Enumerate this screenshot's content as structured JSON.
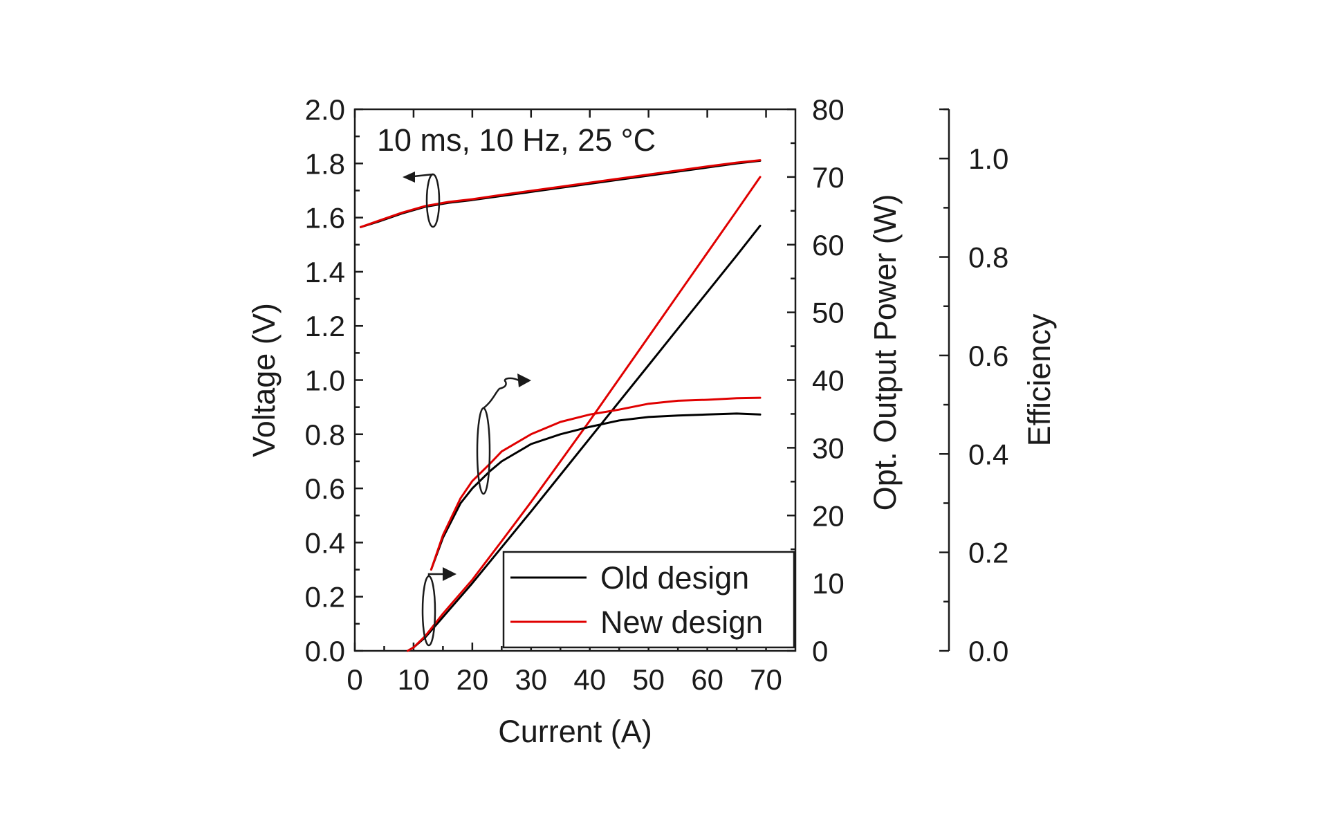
{
  "chart_data": {
    "type": "line",
    "annotation": "10 ms, 10 Hz, 25 °C",
    "x_axis": {
      "label": "Current (A)",
      "range": [
        0,
        75
      ],
      "ticks": [
        0,
        10,
        20,
        30,
        40,
        50,
        60,
        70
      ],
      "tick_labels": [
        "0",
        "10",
        "20",
        "30",
        "40",
        "50",
        "60",
        "70"
      ]
    },
    "y_axis_left": {
      "label": "Voltage (V)",
      "range": [
        0,
        2.0
      ],
      "ticks": [
        0,
        0.2,
        0.4,
        0.6,
        0.8,
        1.0,
        1.2,
        1.4,
        1.6,
        1.8,
        2.0
      ],
      "tick_labels": [
        "0.0",
        "0.2",
        "0.4",
        "0.6",
        "0.8",
        "1.0",
        "1.2",
        "1.4",
        "1.6",
        "1.8",
        "2.0"
      ]
    },
    "y_axis_right": {
      "label": "Opt. Output Power (W)",
      "range": [
        0,
        80
      ],
      "ticks": [
        0,
        10,
        20,
        30,
        40,
        50,
        60,
        70,
        80
      ],
      "tick_labels": [
        "0",
        "10",
        "20",
        "30",
        "40",
        "50",
        "60",
        "70",
        "80"
      ]
    },
    "y_axis_far_right": {
      "label": "Efficiency",
      "range": [
        0,
        1.1
      ],
      "ticks": [
        0,
        0.2,
        0.4,
        0.6,
        0.8,
        1.0
      ],
      "tick_labels": [
        "0.0",
        "0.2",
        "0.4",
        "0.6",
        "0.8",
        "1.0"
      ]
    },
    "legend": {
      "position": "bottom-right",
      "entries": [
        {
          "label": "Old design",
          "color": "#000000"
        },
        {
          "label": "New design",
          "color": "#e00000"
        }
      ]
    },
    "series": [
      {
        "name": "Old design",
        "quantity": "voltage",
        "axis": "left",
        "color": "#000000",
        "x": [
          1,
          4,
          8,
          12,
          16,
          20,
          25,
          30,
          35,
          40,
          45,
          50,
          55,
          60,
          65,
          69
        ],
        "y": [
          1.565,
          1.585,
          1.615,
          1.64,
          1.655,
          1.665,
          1.68,
          1.695,
          1.71,
          1.725,
          1.74,
          1.755,
          1.77,
          1.785,
          1.8,
          1.81
        ]
      },
      {
        "name": "New design",
        "quantity": "voltage",
        "axis": "left",
        "color": "#e00000",
        "x": [
          1,
          4,
          8,
          12,
          16,
          20,
          25,
          30,
          35,
          40,
          45,
          50,
          55,
          60,
          65,
          69
        ],
        "y": [
          1.565,
          1.588,
          1.618,
          1.643,
          1.658,
          1.668,
          1.684,
          1.699,
          1.714,
          1.729,
          1.744,
          1.759,
          1.774,
          1.789,
          1.803,
          1.812
        ]
      },
      {
        "name": "Old design",
        "quantity": "optical_output_power",
        "axis": "right",
        "color": "#000000",
        "x": [
          9,
          10,
          12,
          15,
          20,
          25,
          30,
          35,
          40,
          45,
          50,
          55,
          60,
          65,
          69
        ],
        "y": [
          0,
          0.5,
          2,
          5,
          10,
          15.3,
          20.6,
          26,
          31.4,
          36.8,
          42.2,
          47.6,
          53,
          58.4,
          62.8
        ]
      },
      {
        "name": "New design",
        "quantity": "optical_output_power",
        "axis": "right",
        "color": "#e00000",
        "x": [
          9,
          10,
          12,
          15,
          20,
          25,
          30,
          35,
          40,
          45,
          50,
          55,
          60,
          65,
          69
        ],
        "y": [
          0,
          0.5,
          2.2,
          5.5,
          10.5,
          16.2,
          22,
          28,
          34,
          40.2,
          46.4,
          52.6,
          58.8,
          65,
          70
        ]
      },
      {
        "name": "Old design",
        "quantity": "efficiency",
        "axis": "far_right",
        "color": "#000000",
        "x": [
          13,
          15,
          18,
          20,
          23,
          25,
          30,
          35,
          40,
          45,
          50,
          55,
          60,
          65,
          69
        ],
        "y": [
          0.165,
          0.23,
          0.3,
          0.33,
          0.365,
          0.385,
          0.42,
          0.44,
          0.455,
          0.468,
          0.475,
          0.478,
          0.48,
          0.482,
          0.48
        ]
      },
      {
        "name": "New design",
        "quantity": "efficiency",
        "axis": "far_right",
        "color": "#e00000",
        "x": [
          13,
          15,
          18,
          20,
          23,
          25,
          30,
          35,
          40,
          45,
          50,
          55,
          60,
          65,
          69
        ],
        "y": [
          0.165,
          0.235,
          0.31,
          0.345,
          0.38,
          0.405,
          0.44,
          0.465,
          0.48,
          0.49,
          0.502,
          0.508,
          0.51,
          0.513,
          0.514
        ]
      }
    ]
  }
}
